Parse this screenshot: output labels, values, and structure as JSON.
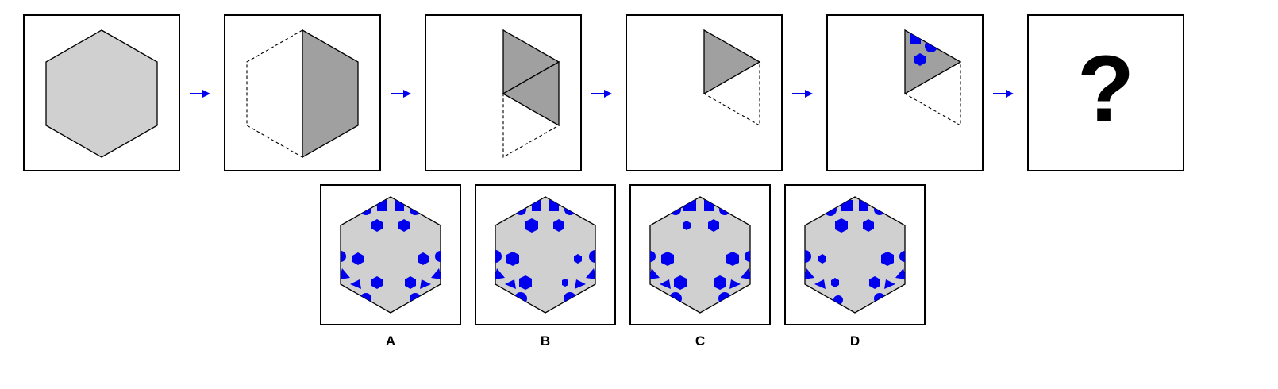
{
  "question_mark": "?",
  "options": [
    {
      "label": "A"
    },
    {
      "label": "B"
    },
    {
      "label": "C"
    },
    {
      "label": "D"
    }
  ],
  "colors": {
    "light_gray": "#d0d0d0",
    "dark_gray": "#a0a0a0",
    "blue": "#0000ee",
    "line": "#000000",
    "background": "#ffffff"
  },
  "icons": [
    "right-arrow-icon"
  ]
}
